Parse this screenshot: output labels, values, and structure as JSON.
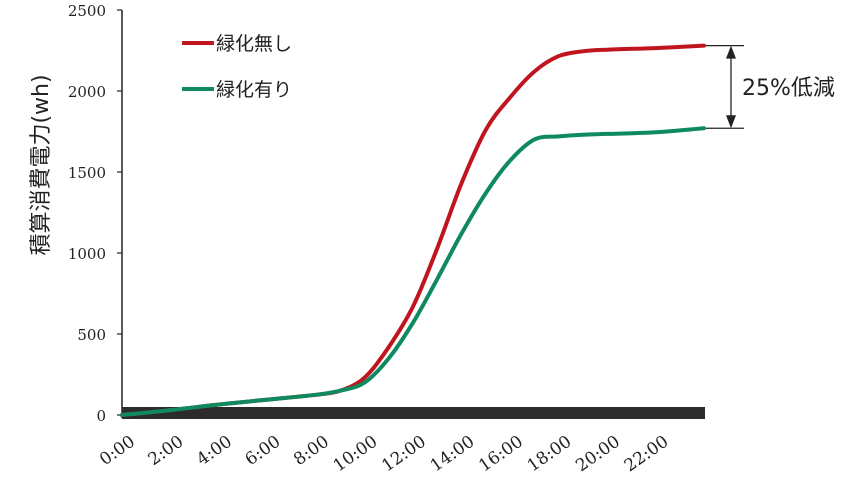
{
  "chart_data": {
    "type": "line",
    "title": "",
    "xlabel": "",
    "ylabel": "積算消費電力(wh)",
    "ylim": [
      0,
      2500
    ],
    "yticks": [
      "0",
      "500",
      "1000",
      "1500",
      "2000",
      "2500"
    ],
    "xticks": [
      "0:00",
      "2:00",
      "4:00",
      "6:00",
      "8:00",
      "10:00",
      "12:00",
      "14:00",
      "16:00",
      "18:00",
      "20:00",
      "22:00"
    ],
    "xlim": [
      0,
      24
    ],
    "grid": false,
    "legend_position": "top-left",
    "series": [
      {
        "name": "緑化無し",
        "color": "#c0151f",
        "x": [
          0,
          2,
          4,
          6,
          8,
          9,
          10,
          11,
          12,
          13,
          14,
          15,
          16,
          17,
          18,
          19,
          20,
          22,
          24
        ],
        "values": [
          0,
          30,
          65,
          95,
          125,
          150,
          230,
          420,
          670,
          1030,
          1430,
          1760,
          1960,
          2120,
          2215,
          2245,
          2255,
          2265,
          2280
        ]
      },
      {
        "name": "緑化有り",
        "color": "#0e8a5e",
        "x": [
          0,
          2,
          4,
          6,
          8,
          9,
          10,
          11,
          12,
          13,
          14,
          15,
          16,
          17,
          18,
          19,
          20,
          22,
          24
        ],
        "values": [
          0,
          30,
          65,
          95,
          125,
          150,
          200,
          350,
          570,
          840,
          1120,
          1370,
          1570,
          1700,
          1720,
          1730,
          1735,
          1745,
          1770
        ]
      }
    ],
    "annotation": {
      "text": "25%低減"
    }
  }
}
